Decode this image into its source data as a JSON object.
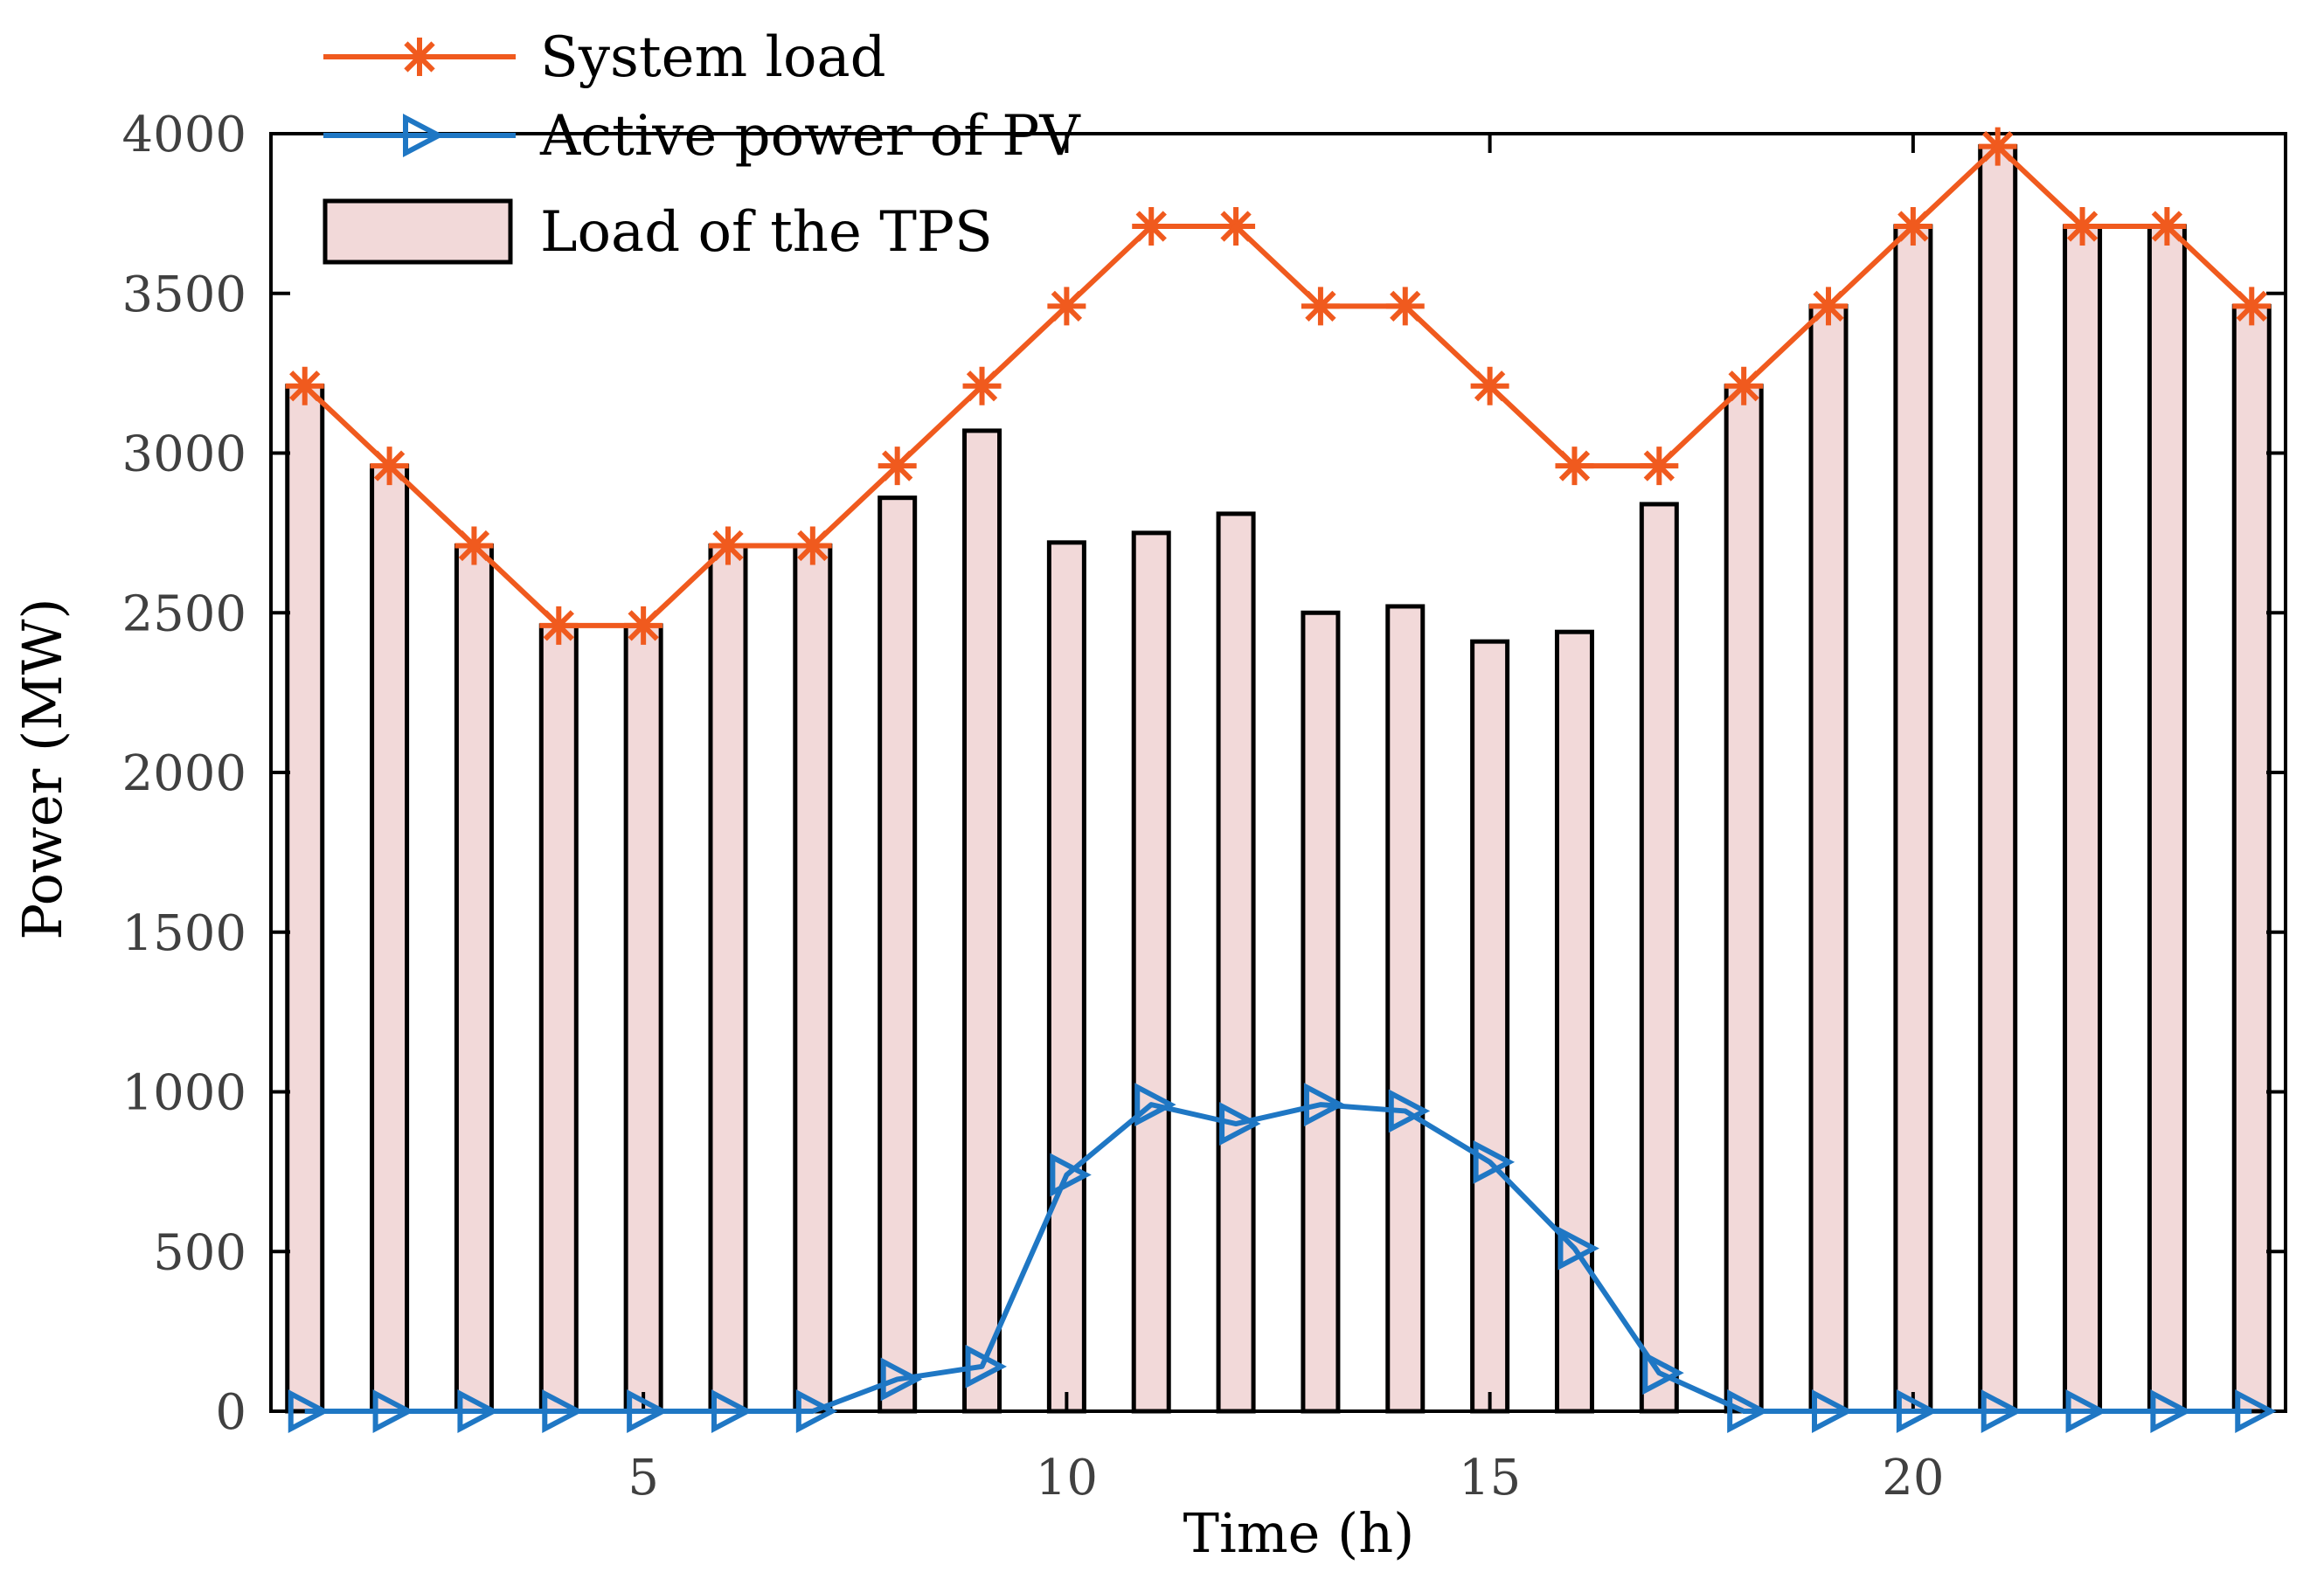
{
  "chart_data": {
    "type": "bar",
    "xlabel": "Time (h)",
    "ylabel": "Power (MW)",
    "xlim": [
      0.6,
      24.4
    ],
    "ylim": [
      0,
      4000
    ],
    "x": [
      1,
      2,
      3,
      4,
      5,
      6,
      7,
      8,
      9,
      10,
      11,
      12,
      13,
      14,
      15,
      16,
      17,
      18,
      19,
      20,
      21,
      22,
      23,
      24
    ],
    "xticks": [
      5,
      10,
      15,
      20
    ],
    "yticks": [
      0,
      500,
      1000,
      1500,
      2000,
      2500,
      3000,
      3500,
      4000
    ],
    "legend_position": "top-left",
    "series": [
      {
        "name": "System load",
        "kind": "line",
        "marker": "asterisk",
        "color": "#f05a1e",
        "values": [
          3210,
          2960,
          2710,
          2460,
          2460,
          2710,
          2710,
          2960,
          3210,
          3460,
          3710,
          3710,
          3460,
          3460,
          3210,
          2960,
          2960,
          3210,
          3460,
          3710,
          3960,
          3710,
          3710,
          3460
        ]
      },
      {
        "name": "Active power of PV",
        "kind": "line",
        "marker": "triangle-right",
        "color": "#1f77c4",
        "values": [
          0,
          0,
          0,
          0,
          0,
          0,
          0,
          100,
          140,
          740,
          960,
          900,
          960,
          940,
          780,
          510,
          120,
          0,
          0,
          0,
          0,
          0,
          0,
          0
        ]
      },
      {
        "name": "Load of the TPS",
        "kind": "bar",
        "color": "#f2d9d9",
        "edge_color": "#000000",
        "values": [
          3210,
          2960,
          2710,
          2460,
          2460,
          2710,
          2710,
          2860,
          3070,
          2720,
          2750,
          2810,
          2500,
          2520,
          2410,
          2440,
          2840,
          3210,
          3460,
          3710,
          3960,
          3710,
          3710,
          3460
        ]
      }
    ]
  }
}
